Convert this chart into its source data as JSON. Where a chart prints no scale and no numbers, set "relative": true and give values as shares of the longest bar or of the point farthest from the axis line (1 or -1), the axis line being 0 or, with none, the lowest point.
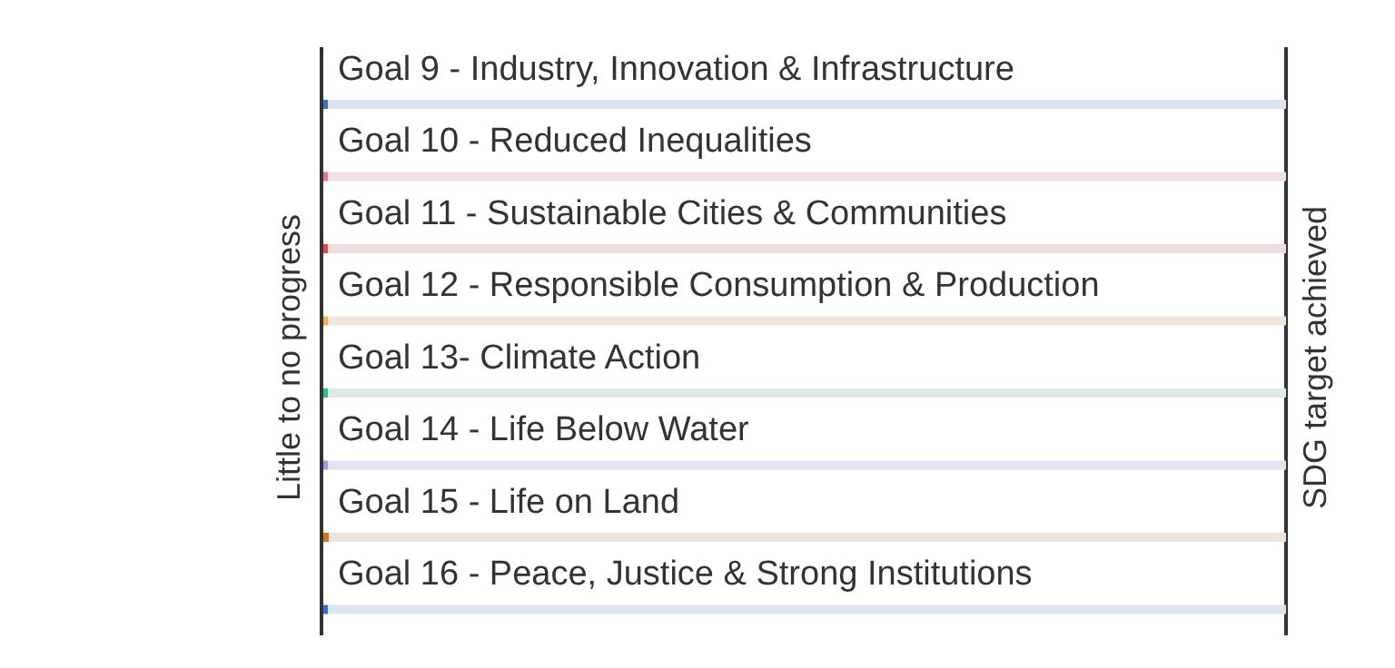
{
  "chart_data": {
    "type": "bar",
    "orientation": "horizontal",
    "stacked": true,
    "relative": true,
    "categories": [
      "Goal 9 - Industry, Innovation & Infrastructure",
      "Goal 10 - Reduced Inequalities",
      "Goal 11 - Sustainable Cities & Communities",
      "Goal 12 - Responsible Consumption & Production",
      "Goal 13- Climate Action",
      "Goal 14 - Life Below Water",
      "Goal 15 - Life on Land",
      "Goal 16 - Peace, Justice & Strong Institutions"
    ],
    "series": [
      {
        "values": [
          0.005,
          0.005,
          0.005,
          0.005,
          0.005,
          0.005,
          0.006,
          0.005
        ],
        "colors": [
          "#3b6fd4",
          "#e07a93",
          "#e0474f",
          "#e8b84a",
          "#2fbf8f",
          "#9b9be0",
          "#c8772e",
          "#3b6fd4"
        ]
      },
      {
        "values": [
          0.995,
          0.995,
          0.995,
          0.995,
          0.995,
          0.995,
          0.994,
          0.995
        ],
        "colors": [
          "#dde5f0",
          "#f2dfe4",
          "#f2dcde",
          "#efe9dc",
          "#dfeae6",
          "#e4e4ef",
          "#efe4dc",
          "#dde5f0"
        ]
      }
    ],
    "annotations": [
      "Little to no progress",
      "SDG target achieved"
    ]
  }
}
